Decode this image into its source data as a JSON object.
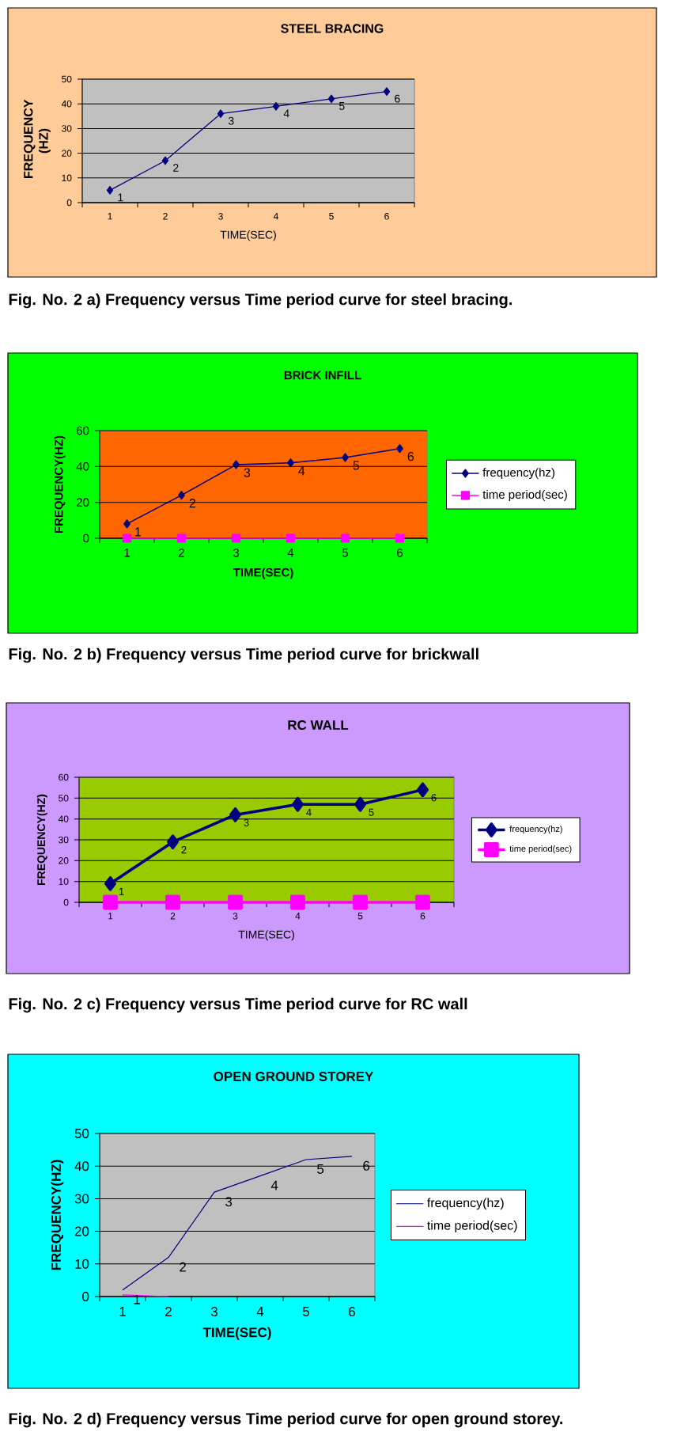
{
  "chart_data": [
    {
      "type": "line",
      "title": "STEEL BRACING",
      "xlabel": "TIME(SEC)",
      "ylabel": "FREQUENCY (HZ)",
      "categories": [
        "1",
        "2",
        "3",
        "4",
        "5",
        "6"
      ],
      "series": [
        {
          "color": "#000080",
          "marker": "diamond",
          "values": [
            5,
            17,
            36,
            39,
            42,
            45
          ]
        }
      ],
      "ylim": [
        0,
        50
      ],
      "yticks": [
        0,
        10,
        20,
        30,
        40,
        50
      ],
      "grid": "y",
      "annotations": [
        {
          "text": "1",
          "x": "1",
          "y": 5
        },
        {
          "text": "2",
          "x": "2",
          "y": 17
        },
        {
          "text": "3",
          "x": "3",
          "y": 36
        },
        {
          "text": "4",
          "x": "4",
          "y": 39
        },
        {
          "text": "5",
          "x": "5",
          "y": 42
        },
        {
          "text": "6",
          "x": "6",
          "y": 45
        },
        "Fig. No. 2 a) Frequency versus Time period curve for steel bracing."
      ]
    },
    {
      "type": "line",
      "title": "BRICK INFILL",
      "xlabel": "TIME(SEC)",
      "ylabel": "FREQUENCY(HZ)",
      "categories": [
        "1",
        "2",
        "3",
        "4",
        "5",
        "6"
      ],
      "series": [
        {
          "name": "frequency(hz)",
          "color": "#000080",
          "marker": "diamond",
          "values": [
            8,
            24,
            41,
            42,
            45,
            50
          ]
        },
        {
          "name": "time period(sec)",
          "color": "#ff00ff",
          "marker": "square",
          "values": [
            0,
            0,
            0,
            0,
            0,
            0
          ]
        }
      ],
      "ylim": [
        0,
        60
      ],
      "yticks": [
        0,
        20,
        40,
        60
      ],
      "grid": "y",
      "legend": "right",
      "annotations": [
        {
          "text": "1",
          "x": "1",
          "y": 8
        },
        {
          "text": "2",
          "x": "2",
          "y": 24
        },
        {
          "text": "3",
          "x": "3",
          "y": 41
        },
        {
          "text": "4",
          "x": "4",
          "y": 42
        },
        {
          "text": "5",
          "x": "5",
          "y": 45
        },
        {
          "text": "6",
          "x": "6",
          "y": 50
        },
        "Fig. No. 2 b) Frequency versus Time period curve for brickwall"
      ]
    },
    {
      "type": "line",
      "title": "RC WALL",
      "xlabel": "TIME(SEC)",
      "ylabel": "FREQUENCY(HZ)",
      "categories": [
        "1",
        "2",
        "3",
        "4",
        "5",
        "6"
      ],
      "series": [
        {
          "name": "frequency(hz)",
          "color": "#000080",
          "marker": "diamond",
          "values": [
            9,
            29,
            42,
            47,
            47,
            54
          ]
        },
        {
          "name": "time period(sec)",
          "color": "#ff00ff",
          "marker": "square",
          "values": [
            0,
            0,
            0,
            0,
            0,
            0
          ]
        }
      ],
      "ylim": [
        0,
        60
      ],
      "yticks": [
        0,
        10,
        20,
        30,
        40,
        50,
        60
      ],
      "grid": "y",
      "legend": "right",
      "annotations": [
        {
          "text": "1",
          "x": "1",
          "y": 9
        },
        {
          "text": "2",
          "x": "2",
          "y": 29
        },
        {
          "text": "3",
          "x": "3",
          "y": 42
        },
        {
          "text": "4",
          "x": "4",
          "y": 47
        },
        {
          "text": "5",
          "x": "5",
          "y": 47
        },
        {
          "text": "6",
          "x": "6",
          "y": 54
        },
        "Fig. No. 2 c) Frequency versus Time period curve for RC wall"
      ]
    },
    {
      "type": "line",
      "title": "OPEN GROUND STOREY",
      "xlabel": "TIME(SEC)",
      "ylabel": "FREQUENCY(HZ)",
      "categories": [
        "1",
        "2",
        "3",
        "4",
        "5",
        "6"
      ],
      "series": [
        {
          "name": "frequency(hz)",
          "color": "#000080",
          "values": [
            2,
            12,
            32,
            37,
            42,
            43
          ]
        },
        {
          "name": "time period(sec)",
          "color": "#ff00ff",
          "values": [
            0.5,
            0,
            null,
            null,
            null,
            null
          ]
        }
      ],
      "marker": "none",
      "ylim": [
        0,
        50
      ],
      "yticks": [
        0,
        10,
        20,
        30,
        40,
        50
      ],
      "grid": "y",
      "legend": "right",
      "annotations": [
        {
          "text": "1",
          "x": "1",
          "y": 2
        },
        {
          "text": "2",
          "x": "2",
          "y": 12
        },
        {
          "text": "3",
          "x": "3",
          "y": 32
        },
        {
          "text": "4",
          "x": "4",
          "y": 37
        },
        {
          "text": "5",
          "x": "5",
          "y": 42
        },
        {
          "text": "6",
          "x": "6",
          "y": 43
        },
        "Fig. No. 2 d) Frequency versus Time period curve for open ground storey."
      ]
    }
  ]
}
